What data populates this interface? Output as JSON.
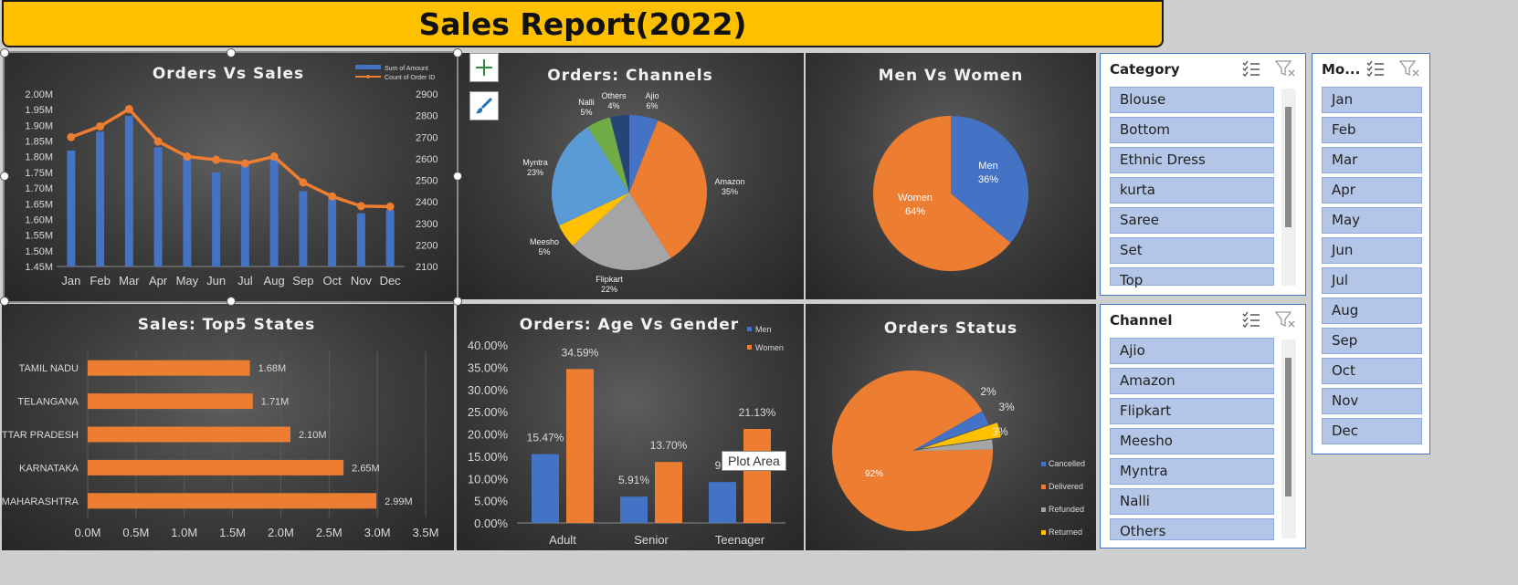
{
  "report": {
    "title": "Sales Report(2022)"
  },
  "tooltip": {
    "text": "Plot Area"
  },
  "chart_data": [
    {
      "id": "orders-vs-sales",
      "type": "bar+line",
      "title": "Orders Vs Sales",
      "categories": [
        "Jan",
        "Feb",
        "Mar",
        "Apr",
        "May",
        "Jun",
        "Jul",
        "Aug",
        "Sep",
        "Oct",
        "Nov",
        "Dec"
      ],
      "series": [
        {
          "name": "Sum of Amount",
          "type": "bar",
          "axis": "left",
          "values": [
            1820000,
            1880000,
            1930000,
            1830000,
            1800000,
            1750000,
            1775000,
            1800000,
            1690000,
            1665000,
            1620000,
            1630000
          ]
        },
        {
          "name": "Count of Order ID",
          "type": "line",
          "axis": "right",
          "values": [
            2700,
            2750,
            2830,
            2680,
            2610,
            2595,
            2578,
            2610,
            2490,
            2425,
            2380,
            2378
          ]
        }
      ],
      "yleft_ticks": [
        "1.45M",
        "1.50M",
        "1.55M",
        "1.60M",
        "1.65M",
        "1.70M",
        "1.75M",
        "1.80M",
        "1.85M",
        "1.90M",
        "1.95M",
        "2.00M"
      ],
      "yleft_range": [
        1450000,
        2000000
      ],
      "yright_ticks": [
        "2100",
        "2200",
        "2300",
        "2400",
        "2500",
        "2600",
        "2700",
        "2800",
        "2900"
      ],
      "yright_range": [
        2100,
        2900
      ],
      "legend": "top-right"
    },
    {
      "id": "orders-channels",
      "type": "pie",
      "title": "Orders: Channels",
      "slices": [
        {
          "label": "Ajio",
          "pct": "6%",
          "value": 6,
          "color": "#4472c4"
        },
        {
          "label": "Amazon",
          "pct": "35%",
          "value": 35,
          "color": "#ed7d31"
        },
        {
          "label": "Flipkart",
          "pct": "22%",
          "value": 22,
          "color": "#a5a5a5"
        },
        {
          "label": "Meesho",
          "pct": "5%",
          "value": 5,
          "color": "#ffc000"
        },
        {
          "label": "Myntra",
          "pct": "23%",
          "value": 23,
          "color": "#5b9bd5"
        },
        {
          "label": "Nalli",
          "pct": "5%",
          "value": 5,
          "color": "#70ad47"
        },
        {
          "label": "Others",
          "pct": "4%",
          "value": 4,
          "color": "#264478"
        }
      ]
    },
    {
      "id": "men-vs-women",
      "type": "pie",
      "title": "Men Vs Women",
      "slices": [
        {
          "label": "Men",
          "pct": "36%",
          "value": 36,
          "color": "#4472c4"
        },
        {
          "label": "Women",
          "pct": "64%",
          "value": 64,
          "color": "#ed7d31"
        }
      ]
    },
    {
      "id": "sales-top5-states",
      "type": "bar",
      "orientation": "horizontal",
      "title": "Sales: Top5 States",
      "categories": [
        "TAMIL NADU",
        "TELANGANA",
        "UTTAR PRADESH",
        "KARNATAKA",
        "MAHARASHTRA"
      ],
      "values": [
        1.68,
        1.71,
        2.1,
        2.65,
        2.99
      ],
      "value_labels": [
        "1.68M",
        "1.71M",
        "2.10M",
        "2.65M",
        "2.99M"
      ],
      "xticks": [
        "0.0M",
        "0.5M",
        "1.0M",
        "1.5M",
        "2.0M",
        "2.5M",
        "3.0M",
        "3.5M"
      ],
      "xlim": [
        0,
        3.5
      ]
    },
    {
      "id": "orders-age-gender",
      "type": "bar",
      "title": "Orders: Age Vs Gender",
      "categories": [
        "Adult",
        "Senior",
        "Teenager"
      ],
      "series": [
        {
          "name": "Men",
          "values": [
            15.47,
            5.91,
            9.2
          ],
          "labels": [
            "15.47%",
            "5.91%",
            "9.2"
          ]
        },
        {
          "name": "Women",
          "values": [
            34.59,
            13.7,
            21.13
          ],
          "labels": [
            "34.59%",
            "13.70%",
            "21.13%"
          ]
        }
      ],
      "yticks": [
        "0.00%",
        "5.00%",
        "10.00%",
        "15.00%",
        "20.00%",
        "25.00%",
        "30.00%",
        "35.00%",
        "40.00%"
      ],
      "ylim": [
        0,
        40
      ],
      "legend": "top-right"
    },
    {
      "id": "orders-status",
      "type": "pie",
      "title": "Orders Status",
      "slices": [
        {
          "label": "Cancelled",
          "pct": "3%",
          "value": 3,
          "color": "#4472c4"
        },
        {
          "label": "Delivered",
          "pct": "92%",
          "value": 92,
          "color": "#ed7d31"
        },
        {
          "label": "Refunded",
          "pct": "2%",
          "value": 2,
          "color": "#a5a5a5"
        },
        {
          "label": "Returned",
          "pct": "3%",
          "value": 3,
          "color": "#ffc000"
        }
      ],
      "legend": "right"
    }
  ],
  "slicers": {
    "category": {
      "title": "Category",
      "items": [
        "Blouse",
        "Bottom",
        "Ethnic Dress",
        "kurta",
        "Saree",
        "Set",
        "Top"
      ]
    },
    "channel": {
      "title": "Channel",
      "items": [
        "Ajio",
        "Amazon",
        "Flipkart",
        "Meesho",
        "Myntra",
        "Nalli",
        "Others"
      ]
    },
    "month": {
      "title": "Mo...",
      "items": [
        "Jan",
        "Feb",
        "Mar",
        "Apr",
        "May",
        "Jun",
        "Jul",
        "Aug",
        "Sep",
        "Oct",
        "Nov",
        "Dec"
      ]
    }
  }
}
